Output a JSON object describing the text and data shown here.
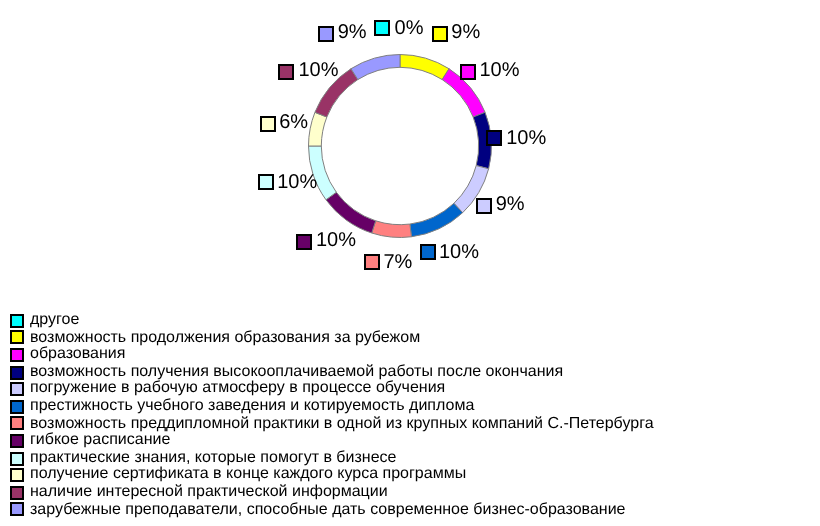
{
  "chart_data": {
    "type": "donut",
    "categories": [
      "другое",
      "возможность продолжения образования за рубежом",
      "образования",
      "возможность получения высокооплачиваемой работы после окончания",
      "погружение в рабочую атмосферу в процессе обучения",
      "престижность учебного заведения и котируемость диплома",
      "возможность преддипломной практики в одной из крупных компаний С.-Петербурга",
      "гибкое расписание",
      "практические знания, которые помогут в бизнесе",
      "получение сертификата в конце каждого курса программы",
      "наличие интересной практической информации",
      "зарубежные преподаватели, способные дать современное бизнес-образование"
    ],
    "values": [
      0,
      9,
      10,
      10,
      9,
      10,
      7,
      10,
      10,
      6,
      10,
      9
    ],
    "value_labels": [
      "0%",
      "9%",
      "10%",
      "10%",
      "9%",
      "10%",
      "7%",
      "10%",
      "10%",
      "6%",
      "10%",
      "9%"
    ],
    "colors": [
      "#00ffff",
      "#ffff00",
      "#ff00ff",
      "#000080",
      "#ccccff",
      "#0066cc",
      "#ff8080",
      "#660066",
      "#ccffff",
      "#ffffcc",
      "#993366",
      "#9999ff"
    ],
    "legend": "bottom"
  }
}
